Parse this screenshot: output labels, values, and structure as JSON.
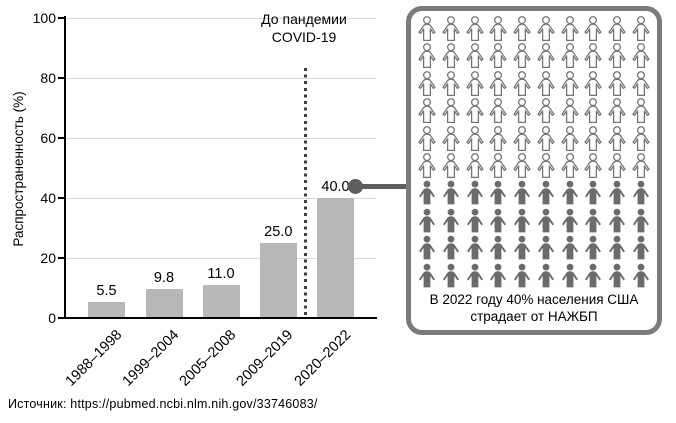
{
  "chart_data": {
    "type": "bar",
    "categories": [
      "1988–1998",
      "1999–2004",
      "2005–2008",
      "2009–2019",
      "2020–2022"
    ],
    "values": [
      5.5,
      9.8,
      11.0,
      25.0,
      40.0
    ],
    "value_labels": [
      "5.5",
      "9.8",
      "11.0",
      "25.0",
      "40.0"
    ],
    "title": "",
    "xlabel": "",
    "ylabel": "Распространенность (%)",
    "ylim": [
      0,
      100
    ],
    "yticks": [
      0,
      20,
      40,
      60,
      80,
      100
    ],
    "grid": true,
    "legend": null,
    "annotation": {
      "line1": "До пандемии",
      "line2": "COVID-19"
    },
    "divider_after_category": "2009–2019",
    "bar_color": "#b7b7b7"
  },
  "infographic": {
    "total_icons": 100,
    "filled_icons": 40,
    "outline_icons": 60,
    "icons_per_row": 10,
    "caption_line1": "В 2022 году 40% населения США",
    "caption_line2": "страдает от НАЖБП",
    "filled_color": "#6b6b6b",
    "outline_color": "#757575",
    "border_color": "#7b7b7b"
  },
  "source": {
    "text": "Источник: https://pubmed.ncbi.nlm.nih.gov/33746083/"
  }
}
